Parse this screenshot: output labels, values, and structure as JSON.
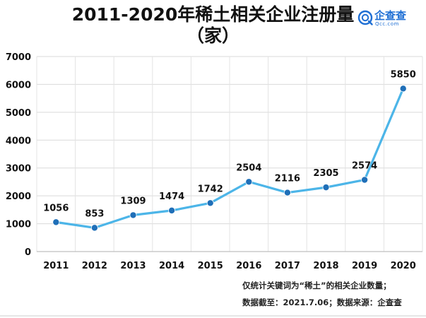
{
  "header": {
    "title_line1": "2011-2020年稀土相关企业注册量",
    "title_line2": "（家）"
  },
  "logo": {
    "name": "企查查",
    "domain": "Qcc.com",
    "icon": "qcc-logo-icon",
    "color": "#1f6fd4"
  },
  "chart_data": {
    "type": "line",
    "title": "2011-2020年稀土相关企业注册量（家）",
    "xlabel": "",
    "ylabel": "",
    "categories": [
      "2011",
      "2012",
      "2013",
      "2014",
      "2015",
      "2016",
      "2017",
      "2018",
      "2019",
      "2020"
    ],
    "series": [
      {
        "values": [
          1056,
          853,
          1309,
          1474,
          1742,
          2504,
          2116,
          2305,
          2574,
          5850
        ],
        "line_color": "#4cb5e8",
        "marker_color": "#1f6fb8"
      }
    ],
    "ylim": [
      0,
      7000
    ],
    "yticks": [
      0,
      1000,
      2000,
      3000,
      4000,
      5000,
      6000,
      7000
    ],
    "grid": true,
    "legend": "none"
  },
  "notes": {
    "line1": "仅统计关键词为“稀土”的相关企业数量；",
    "line2": "数据截至：2021.7.06；数据来源：企查查"
  }
}
